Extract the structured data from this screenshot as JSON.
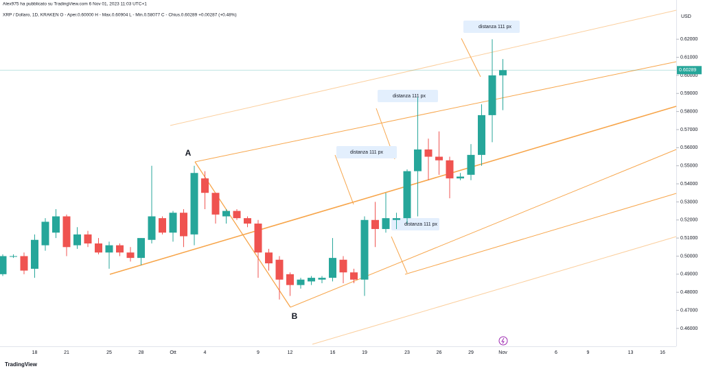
{
  "header": {
    "publisher": "Alex975 ha pubblicato su TradingView.com 6 Nov 01, 2023 11:03 UTC+1",
    "legend": "XRP / Dollaro, 1D, KRAKEN  O - Aper.0.60000  H - Max.0.60904  L - Min.0.58077  C - Chius.0.60289  +0.00287 (+0.48%)"
  },
  "footer": {
    "logo": "TradingView"
  },
  "chart_data": {
    "type": "candlestick",
    "currency": "USD",
    "last_price_label": "0.60289",
    "up_color": "#26a69a",
    "down_color": "#ef5350",
    "drawing_color": "#f7a54a",
    "annotations": [
      "A",
      "B",
      "distanza 111 px",
      "distanza 111 px",
      "distanza 111 px",
      "distanza 111 px"
    ],
    "categories": [
      null,
      null,
      null,
      "18",
      null,
      null,
      "21",
      null,
      null,
      null,
      "25",
      null,
      null,
      "28",
      null,
      null,
      "Ott",
      null,
      null,
      "4",
      null,
      null,
      null,
      null,
      "9",
      null,
      null,
      "12",
      null,
      null,
      null,
      "16",
      null,
      null,
      "19",
      null,
      null,
      null,
      "23",
      null,
      null,
      "26",
      null,
      null,
      "29",
      null,
      null,
      "Nov",
      null,
      null,
      null,
      null,
      "6",
      null,
      null,
      "9",
      null,
      null,
      null,
      "13",
      null,
      null,
      "16"
    ],
    "open": [
      0.49,
      0.5,
      0.5,
      0.493,
      0.506,
      0.513,
      0.522,
      0.506,
      0.512,
      0.507,
      0.502,
      0.506,
      0.502,
      0.499,
      0.509,
      0.521,
      0.513,
      0.524,
      0.512,
      0.543,
      0.535,
      0.522,
      0.525,
      0.521,
      0.518,
      0.502,
      0.498,
      0.49,
      0.484,
      0.486,
      0.487,
      0.488,
      0.498,
      0.491,
      0.487,
      0.52,
      0.515,
      0.52,
      0.521,
      0.547,
      0.559,
      0.555,
      0.553,
      0.543,
      0.545,
      0.556,
      0.578,
      0.6,
      null,
      null,
      null,
      null,
      null,
      null,
      null,
      null,
      null,
      null,
      null,
      null,
      null,
      null,
      null
    ],
    "high": [
      0.501,
      0.501,
      0.502,
      0.512,
      0.521,
      0.526,
      0.523,
      0.516,
      0.514,
      0.51,
      0.508,
      0.507,
      0.505,
      0.51,
      0.55,
      0.522,
      0.525,
      0.526,
      0.55,
      0.547,
      0.535,
      0.526,
      0.526,
      0.522,
      0.52,
      0.504,
      0.5,
      0.491,
      0.488,
      0.489,
      0.489,
      0.51,
      0.5,
      0.493,
      0.522,
      0.53,
      0.535,
      0.524,
      0.548,
      0.588,
      0.565,
      0.569,
      0.555,
      0.546,
      0.562,
      0.584,
      0.62,
      0.60904,
      null,
      null,
      null,
      null,
      null,
      null,
      null,
      null,
      null,
      null,
      null,
      null,
      null,
      null,
      null
    ],
    "low": [
      0.489,
      0.499,
      0.49,
      0.488,
      0.503,
      0.51,
      0.5,
      0.504,
      0.505,
      0.501,
      0.493,
      0.5,
      0.497,
      0.495,
      0.507,
      0.512,
      0.508,
      0.505,
      0.506,
      0.526,
      0.518,
      0.518,
      0.52,
      0.516,
      0.488,
      0.492,
      0.476,
      0.478,
      0.482,
      0.484,
      0.485,
      0.486,
      0.485,
      0.485,
      0.478,
      0.505,
      0.513,
      0.515,
      0.518,
      0.522,
      0.542,
      0.545,
      0.532,
      0.542,
      0.542,
      0.55,
      0.563,
      0.58077,
      null,
      null,
      null,
      null,
      null,
      null,
      null,
      null,
      null,
      null,
      null,
      null,
      null,
      null,
      null
    ],
    "close": [
      0.5,
      0.5,
      0.492,
      0.509,
      0.519,
      0.522,
      0.505,
      0.512,
      0.507,
      0.502,
      0.506,
      0.502,
      0.499,
      0.51,
      0.522,
      0.513,
      0.524,
      0.511,
      0.546,
      0.535,
      0.523,
      0.525,
      0.521,
      0.518,
      0.502,
      0.496,
      0.487,
      0.484,
      0.487,
      0.488,
      0.488,
      0.499,
      0.491,
      0.487,
      0.52,
      0.515,
      0.521,
      0.521,
      0.547,
      0.559,
      0.555,
      0.553,
      0.543,
      0.544,
      0.556,
      0.578,
      0.6,
      0.60289,
      null,
      null,
      null,
      null,
      null,
      null,
      null,
      null,
      null,
      null,
      null,
      null,
      null,
      null,
      null
    ],
    "ylim": [
      0.4501,
      0.6417
    ],
    "yticks": [
      {
        "value": 0.46,
        "label": "0.46000"
      },
      {
        "value": 0.47,
        "label": "0.47000"
      },
      {
        "value": 0.48,
        "label": "0.48000"
      },
      {
        "value": 0.49,
        "label": "0.49000"
      },
      {
        "value": 0.5,
        "label": "0.50000"
      },
      {
        "value": 0.51,
        "label": "0.51000"
      },
      {
        "value": 0.52,
        "label": "0.52000"
      },
      {
        "value": 0.53,
        "label": "0.53000"
      },
      {
        "value": 0.54,
        "label": "0.54000"
      },
      {
        "value": 0.55,
        "label": "0.55000"
      },
      {
        "value": 0.56,
        "label": "0.56000"
      },
      {
        "value": 0.57,
        "label": "0.57000"
      },
      {
        "value": 0.58,
        "label": "0.58000"
      },
      {
        "value": 0.59,
        "label": "0.59000"
      },
      {
        "value": 0.6,
        "label": "0.60000"
      },
      {
        "value": 0.61,
        "label": "0.61000"
      },
      {
        "value": 0.62,
        "label": "0.62000"
      }
    ]
  }
}
